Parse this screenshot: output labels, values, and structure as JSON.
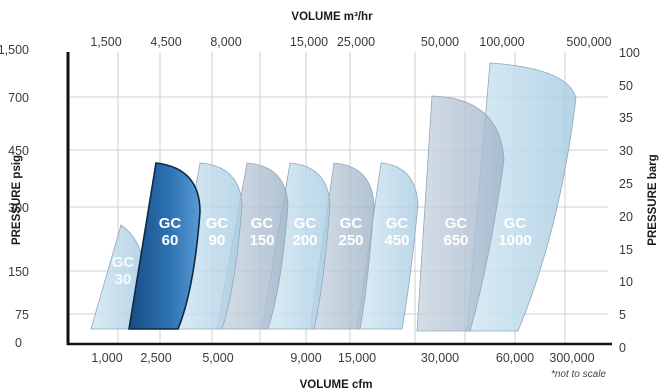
{
  "chart_data": {
    "type": "area",
    "top_axis": {
      "label": "VOLUME m³/hr",
      "ticks": [
        "1,500",
        "4,500",
        "8,000",
        "15,000",
        "25,000",
        "50,000",
        "100,000",
        "500,000"
      ]
    },
    "bottom_axis": {
      "label": "VOLUME cfm",
      "ticks": [
        "1,000",
        "2,500",
        "5,000",
        "9,000",
        "15,000",
        "30,000",
        "60,000",
        "300,000"
      ]
    },
    "left_axis": {
      "label": "PRESSURE psig",
      "ticks": [
        "0",
        "75",
        "150",
        "300",
        "450",
        "700",
        "1,500"
      ]
    },
    "right_axis": {
      "label": "PRESSURE barg",
      "ticks": [
        "0",
        "5",
        "10",
        "15",
        "20",
        "25",
        "30",
        "35",
        "50",
        "100"
      ]
    },
    "series": [
      {
        "name": "GC 30",
        "max_pressure_psig": 250
      },
      {
        "name": "GC 60",
        "max_pressure_psig": 410
      },
      {
        "name": "GC 90",
        "max_pressure_psig": 410
      },
      {
        "name": "GC 150",
        "max_pressure_psig": 410
      },
      {
        "name": "GC 200",
        "max_pressure_psig": 410
      },
      {
        "name": "GC 250",
        "max_pressure_psig": 410
      },
      {
        "name": "GC 450",
        "max_pressure_psig": 410
      },
      {
        "name": "GC 650",
        "max_pressure_psig": 650
      },
      {
        "name": "GC 1000",
        "max_pressure_psig": 800
      }
    ],
    "highlighted_series": "GC 60",
    "note": "*not to scale",
    "colors": {
      "envelope": "#b9d9ea",
      "envelope_grey": "#b4c3d3",
      "highlight": "#1f5d9c",
      "grid": "#cfcfcf",
      "axis": "#111111"
    }
  }
}
